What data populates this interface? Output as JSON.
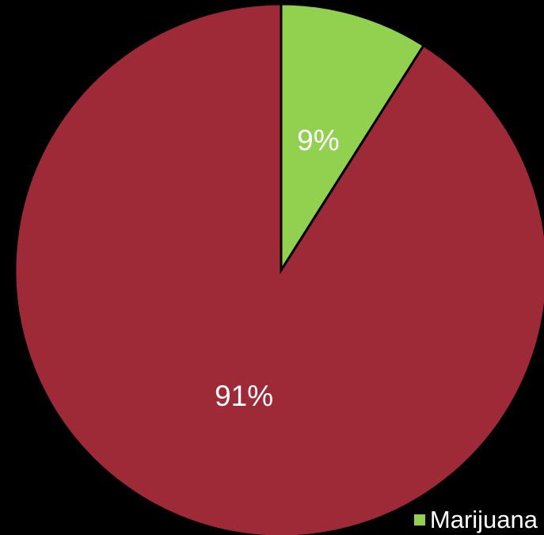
{
  "chart_data": {
    "type": "pie",
    "background": "#000000",
    "slices": [
      {
        "label": "Marijuana",
        "value": 9,
        "display": "9%",
        "color": "#92d050"
      },
      {
        "label": "",
        "value": 91,
        "display": "91%",
        "color": "#9e2a37"
      }
    ],
    "legend": {
      "placement": "bottom-right",
      "entries": [
        {
          "label": "Marijuana",
          "color": "#92d050"
        }
      ]
    }
  }
}
